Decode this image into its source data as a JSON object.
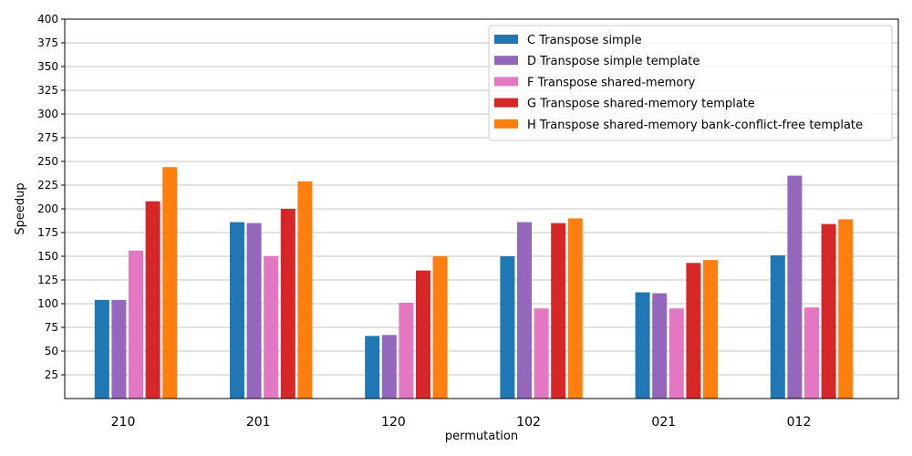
{
  "chart_data": {
    "type": "bar",
    "xlabel": "permutation",
    "ylabel": "Speedup",
    "ylim": [
      0,
      400
    ],
    "yticks": [
      25,
      50,
      75,
      100,
      125,
      150,
      175,
      200,
      225,
      250,
      275,
      300,
      325,
      350,
      375,
      400
    ],
    "grid": "y",
    "legend_position": "top-right",
    "categories": [
      "210",
      "201",
      "120",
      "102",
      "021",
      "012"
    ],
    "series": [
      {
        "name": "C Transpose simple",
        "color": "#1f77b4",
        "values": [
          104,
          186,
          66,
          150,
          112,
          151
        ]
      },
      {
        "name": "D Transpose simple template",
        "color": "#9467bd",
        "values": [
          104,
          185,
          67,
          186,
          111,
          235
        ]
      },
      {
        "name": "F Transpose shared-memory",
        "color": "#e377c2",
        "values": [
          156,
          150,
          101,
          95,
          95,
          96
        ]
      },
      {
        "name": "G Transpose shared-memory template",
        "color": "#d62728",
        "values": [
          208,
          200,
          135,
          185,
          143,
          184
        ]
      },
      {
        "name": "H Transpose shared-memory bank-conflict-free template",
        "color": "#ff7f0e",
        "values": [
          244,
          229,
          150,
          190,
          146,
          189
        ]
      }
    ]
  }
}
